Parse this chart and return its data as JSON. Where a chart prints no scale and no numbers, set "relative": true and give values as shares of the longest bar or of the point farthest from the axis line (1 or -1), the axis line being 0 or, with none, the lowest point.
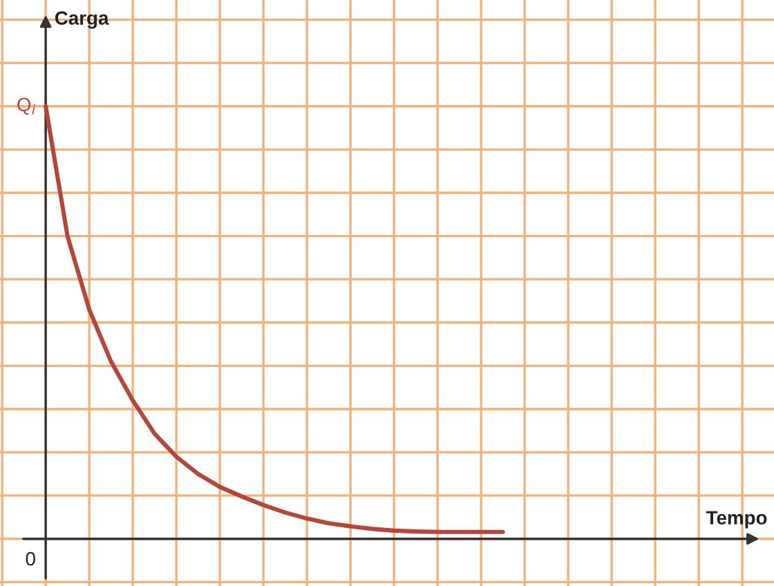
{
  "chart_data": {
    "type": "line",
    "relative": true,
    "ylabel": "Carga",
    "categories": [
      null,
      null,
      null,
      null,
      null,
      null,
      null,
      null,
      null,
      null,
      null,
      null,
      null,
      null,
      null,
      null,
      null,
      null,
      null,
      null,
      null,
      null
    ],
    "series": [
      {
        "color": "#b5473a",
        "values": [
          1.0,
          0.7,
          0.53,
          0.41,
          0.32,
          0.243,
          0.19,
          0.15,
          0.12,
          0.098,
          0.078,
          0.061,
          0.047,
          0.036,
          0.029,
          0.023,
          0.019,
          0.017,
          0.016,
          0.016,
          0.016,
          0.016
        ]
      }
    ],
    "annotations": [
      "Q$_{i}$",
      "0",
      "Tempo"
    ],
    "grid": true,
    "marker": "none",
    "line_style": "solid"
  }
}
